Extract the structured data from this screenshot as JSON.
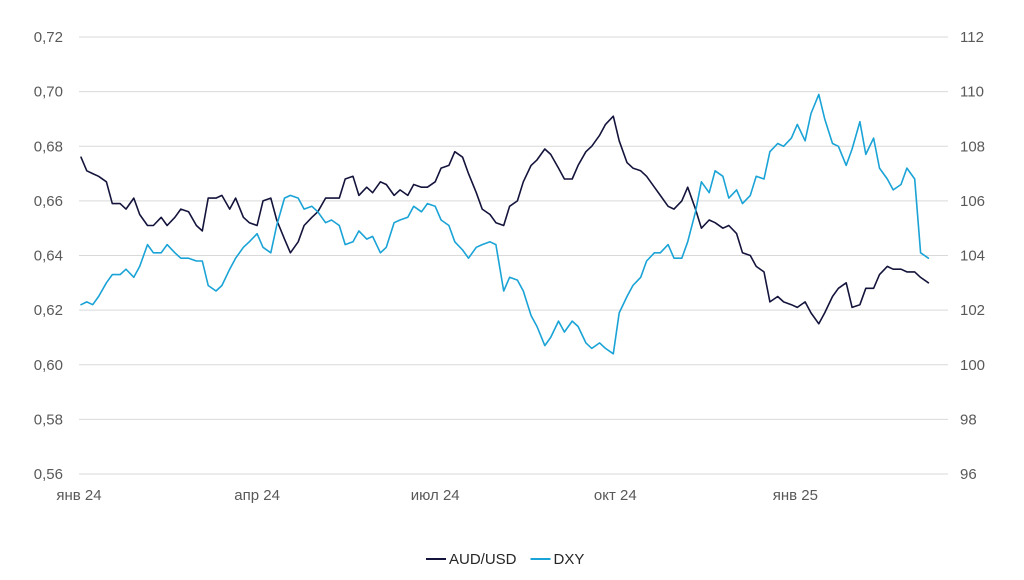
{
  "chart_data": {
    "type": "line",
    "title": "",
    "xlabel": "",
    "ylabel_left": "",
    "ylabel_right": "",
    "x_tick_labels": [
      {
        "label": "янв 24",
        "date": "2024-01-01"
      },
      {
        "label": "апр 24",
        "date": "2024-04-01"
      },
      {
        "label": "июл 24",
        "date": "2024-07-01"
      },
      {
        "label": "окт 24",
        "date": "2024-10-01"
      },
      {
        "label": "янв 25",
        "date": "2025-01-01"
      }
    ],
    "xlim": [
      "2024-01-01",
      "2025-03-20"
    ],
    "left_axis": {
      "ylim": [
        0.56,
        0.72
      ],
      "ticks": [
        {
          "value": 0.56,
          "label": "0,56"
        },
        {
          "value": 0.58,
          "label": "0,58"
        },
        {
          "value": 0.6,
          "label": "0,60"
        },
        {
          "value": 0.62,
          "label": "0,62"
        },
        {
          "value": 0.64,
          "label": "0,64"
        },
        {
          "value": 0.66,
          "label": "0,66"
        },
        {
          "value": 0.68,
          "label": "0,68"
        },
        {
          "value": 0.7,
          "label": "0,70"
        },
        {
          "value": 0.72,
          "label": "0,72"
        }
      ]
    },
    "right_axis": {
      "ylim": [
        96,
        112
      ],
      "ticks": [
        {
          "value": 96,
          "label": "96"
        },
        {
          "value": 98,
          "label": "98"
        },
        {
          "value": 100,
          "label": "100"
        },
        {
          "value": 102,
          "label": "102"
        },
        {
          "value": 104,
          "label": "104"
        },
        {
          "value": 106,
          "label": "106"
        },
        {
          "value": 108,
          "label": "108"
        },
        {
          "value": 110,
          "label": "110"
        },
        {
          "value": 112,
          "label": "112"
        }
      ]
    },
    "grid": true,
    "legend_position": "bottom",
    "series": [
      {
        "name": "AUD/USD",
        "axis": "left",
        "color": "#14143c",
        "points": [
          [
            "2024-01-02",
            0.676
          ],
          [
            "2024-01-05",
            0.671
          ],
          [
            "2024-01-08",
            0.67
          ],
          [
            "2024-01-11",
            0.669
          ],
          [
            "2024-01-15",
            0.667
          ],
          [
            "2024-01-18",
            0.659
          ],
          [
            "2024-01-22",
            0.659
          ],
          [
            "2024-01-25",
            0.657
          ],
          [
            "2024-01-29",
            0.661
          ],
          [
            "2024-02-01",
            0.655
          ],
          [
            "2024-02-05",
            0.651
          ],
          [
            "2024-02-08",
            0.651
          ],
          [
            "2024-02-12",
            0.654
          ],
          [
            "2024-02-15",
            0.651
          ],
          [
            "2024-02-19",
            0.654
          ],
          [
            "2024-02-22",
            0.657
          ],
          [
            "2024-02-26",
            0.656
          ],
          [
            "2024-03-01",
            0.651
          ],
          [
            "2024-03-04",
            0.649
          ],
          [
            "2024-03-07",
            0.661
          ],
          [
            "2024-03-11",
            0.661
          ],
          [
            "2024-03-14",
            0.662
          ],
          [
            "2024-03-18",
            0.657
          ],
          [
            "2024-03-21",
            0.661
          ],
          [
            "2024-03-25",
            0.654
          ],
          [
            "2024-03-28",
            0.652
          ],
          [
            "2024-04-01",
            0.651
          ],
          [
            "2024-04-04",
            0.66
          ],
          [
            "2024-04-08",
            0.661
          ],
          [
            "2024-04-11",
            0.653
          ],
          [
            "2024-04-15",
            0.646
          ],
          [
            "2024-04-18",
            0.641
          ],
          [
            "2024-04-22",
            0.645
          ],
          [
            "2024-04-25",
            0.651
          ],
          [
            "2024-04-29",
            0.654
          ],
          [
            "2024-05-02",
            0.656
          ],
          [
            "2024-05-06",
            0.661
          ],
          [
            "2024-05-09",
            0.661
          ],
          [
            "2024-05-13",
            0.661
          ],
          [
            "2024-05-16",
            0.668
          ],
          [
            "2024-05-20",
            0.669
          ],
          [
            "2024-05-23",
            0.662
          ],
          [
            "2024-05-27",
            0.665
          ],
          [
            "2024-05-30",
            0.663
          ],
          [
            "2024-06-03",
            0.667
          ],
          [
            "2024-06-06",
            0.666
          ],
          [
            "2024-06-10",
            0.662
          ],
          [
            "2024-06-13",
            0.664
          ],
          [
            "2024-06-17",
            0.662
          ],
          [
            "2024-06-20",
            0.666
          ],
          [
            "2024-06-24",
            0.665
          ],
          [
            "2024-06-27",
            0.665
          ],
          [
            "2024-07-01",
            0.667
          ],
          [
            "2024-07-04",
            0.672
          ],
          [
            "2024-07-08",
            0.673
          ],
          [
            "2024-07-11",
            0.678
          ],
          [
            "2024-07-15",
            0.676
          ],
          [
            "2024-07-18",
            0.67
          ],
          [
            "2024-07-22",
            0.663
          ],
          [
            "2024-07-25",
            0.657
          ],
          [
            "2024-07-29",
            0.655
          ],
          [
            "2024-08-01",
            0.652
          ],
          [
            "2024-08-05",
            0.651
          ],
          [
            "2024-08-08",
            0.658
          ],
          [
            "2024-08-12",
            0.66
          ],
          [
            "2024-08-15",
            0.667
          ],
          [
            "2024-08-19",
            0.673
          ],
          [
            "2024-08-22",
            0.675
          ],
          [
            "2024-08-26",
            0.679
          ],
          [
            "2024-08-29",
            0.677
          ],
          [
            "2024-09-02",
            0.672
          ],
          [
            "2024-09-05",
            0.668
          ],
          [
            "2024-09-09",
            0.668
          ],
          [
            "2024-09-12",
            0.673
          ],
          [
            "2024-09-16",
            0.678
          ],
          [
            "2024-09-19",
            0.68
          ],
          [
            "2024-09-23",
            0.684
          ],
          [
            "2024-09-26",
            0.688
          ],
          [
            "2024-09-30",
            0.691
          ],
          [
            "2024-10-03",
            0.682
          ],
          [
            "2024-10-07",
            0.674
          ],
          [
            "2024-10-10",
            0.672
          ],
          [
            "2024-10-14",
            0.671
          ],
          [
            "2024-10-17",
            0.669
          ],
          [
            "2024-10-21",
            0.665
          ],
          [
            "2024-10-24",
            0.662
          ],
          [
            "2024-10-28",
            0.658
          ],
          [
            "2024-10-31",
            0.657
          ],
          [
            "2024-11-04",
            0.66
          ],
          [
            "2024-11-07",
            0.665
          ],
          [
            "2024-11-11",
            0.657
          ],
          [
            "2024-11-14",
            0.65
          ],
          [
            "2024-11-18",
            0.653
          ],
          [
            "2024-11-21",
            0.652
          ],
          [
            "2024-11-25",
            0.65
          ],
          [
            "2024-11-28",
            0.651
          ],
          [
            "2024-12-02",
            0.648
          ],
          [
            "2024-12-05",
            0.641
          ],
          [
            "2024-12-09",
            0.64
          ],
          [
            "2024-12-12",
            0.636
          ],
          [
            "2024-12-16",
            0.634
          ],
          [
            "2024-12-19",
            0.623
          ],
          [
            "2024-12-23",
            0.625
          ],
          [
            "2024-12-26",
            0.623
          ],
          [
            "2024-12-30",
            0.622
          ],
          [
            "2025-01-02",
            0.621
          ],
          [
            "2025-01-06",
            0.623
          ],
          [
            "2025-01-09",
            0.619
          ],
          [
            "2025-01-13",
            0.615
          ],
          [
            "2025-01-16",
            0.619
          ],
          [
            "2025-01-20",
            0.625
          ],
          [
            "2025-01-23",
            0.628
          ],
          [
            "2025-01-27",
            0.63
          ],
          [
            "2025-01-30",
            0.621
          ],
          [
            "2025-02-03",
            0.622
          ],
          [
            "2025-02-06",
            0.628
          ],
          [
            "2025-02-10",
            0.628
          ],
          [
            "2025-02-13",
            0.633
          ],
          [
            "2025-02-17",
            0.636
          ],
          [
            "2025-02-20",
            0.635
          ],
          [
            "2025-02-24",
            0.635
          ],
          [
            "2025-02-27",
            0.634
          ],
          [
            "2025-03-03",
            0.634
          ],
          [
            "2025-03-06",
            0.632
          ],
          [
            "2025-03-10",
            0.63
          ]
        ]
      },
      {
        "name": "DXY",
        "axis": "right",
        "color": "#1aa3d6",
        "points": [
          [
            "2024-01-02",
            102.2
          ],
          [
            "2024-01-05",
            102.3
          ],
          [
            "2024-01-08",
            102.2
          ],
          [
            "2024-01-11",
            102.5
          ],
          [
            "2024-01-15",
            103.0
          ],
          [
            "2024-01-18",
            103.3
          ],
          [
            "2024-01-22",
            103.3
          ],
          [
            "2024-01-25",
            103.5
          ],
          [
            "2024-01-29",
            103.2
          ],
          [
            "2024-02-01",
            103.6
          ],
          [
            "2024-02-05",
            104.4
          ],
          [
            "2024-02-08",
            104.1
          ],
          [
            "2024-02-12",
            104.1
          ],
          [
            "2024-02-15",
            104.4
          ],
          [
            "2024-02-19",
            104.1
          ],
          [
            "2024-02-22",
            103.9
          ],
          [
            "2024-02-26",
            103.9
          ],
          [
            "2024-03-01",
            103.8
          ],
          [
            "2024-03-04",
            103.8
          ],
          [
            "2024-03-07",
            102.9
          ],
          [
            "2024-03-11",
            102.7
          ],
          [
            "2024-03-14",
            102.9
          ],
          [
            "2024-03-18",
            103.5
          ],
          [
            "2024-03-21",
            103.9
          ],
          [
            "2024-03-25",
            104.3
          ],
          [
            "2024-03-28",
            104.5
          ],
          [
            "2024-04-01",
            104.8
          ],
          [
            "2024-04-04",
            104.3
          ],
          [
            "2024-04-08",
            104.1
          ],
          [
            "2024-04-11",
            105.1
          ],
          [
            "2024-04-15",
            106.1
          ],
          [
            "2024-04-18",
            106.2
          ],
          [
            "2024-04-22",
            106.1
          ],
          [
            "2024-04-25",
            105.7
          ],
          [
            "2024-04-29",
            105.8
          ],
          [
            "2024-05-02",
            105.6
          ],
          [
            "2024-05-06",
            105.2
          ],
          [
            "2024-05-09",
            105.3
          ],
          [
            "2024-05-13",
            105.1
          ],
          [
            "2024-05-16",
            104.4
          ],
          [
            "2024-05-20",
            104.5
          ],
          [
            "2024-05-23",
            104.9
          ],
          [
            "2024-05-27",
            104.6
          ],
          [
            "2024-05-30",
            104.7
          ],
          [
            "2024-06-03",
            104.1
          ],
          [
            "2024-06-06",
            104.3
          ],
          [
            "2024-06-10",
            105.2
          ],
          [
            "2024-06-13",
            105.3
          ],
          [
            "2024-06-17",
            105.4
          ],
          [
            "2024-06-20",
            105.8
          ],
          [
            "2024-06-24",
            105.6
          ],
          [
            "2024-06-27",
            105.9
          ],
          [
            "2024-07-01",
            105.8
          ],
          [
            "2024-07-04",
            105.3
          ],
          [
            "2024-07-08",
            105.1
          ],
          [
            "2024-07-11",
            104.5
          ],
          [
            "2024-07-15",
            104.2
          ],
          [
            "2024-07-18",
            103.9
          ],
          [
            "2024-07-22",
            104.3
          ],
          [
            "2024-07-25",
            104.4
          ],
          [
            "2024-07-29",
            104.5
          ],
          [
            "2024-08-01",
            104.4
          ],
          [
            "2024-08-05",
            102.7
          ],
          [
            "2024-08-08",
            103.2
          ],
          [
            "2024-08-12",
            103.1
          ],
          [
            "2024-08-15",
            102.7
          ],
          [
            "2024-08-19",
            101.8
          ],
          [
            "2024-08-22",
            101.4
          ],
          [
            "2024-08-26",
            100.7
          ],
          [
            "2024-08-29",
            101.0
          ],
          [
            "2024-09-02",
            101.6
          ],
          [
            "2024-09-05",
            101.2
          ],
          [
            "2024-09-09",
            101.6
          ],
          [
            "2024-09-12",
            101.4
          ],
          [
            "2024-09-16",
            100.8
          ],
          [
            "2024-09-19",
            100.6
          ],
          [
            "2024-09-23",
            100.8
          ],
          [
            "2024-09-26",
            100.6
          ],
          [
            "2024-09-30",
            100.4
          ],
          [
            "2024-10-03",
            101.9
          ],
          [
            "2024-10-07",
            102.5
          ],
          [
            "2024-10-10",
            102.9
          ],
          [
            "2024-10-14",
            103.2
          ],
          [
            "2024-10-17",
            103.8
          ],
          [
            "2024-10-21",
            104.1
          ],
          [
            "2024-10-24",
            104.1
          ],
          [
            "2024-10-28",
            104.4
          ],
          [
            "2024-10-31",
            103.9
          ],
          [
            "2024-11-04",
            103.9
          ],
          [
            "2024-11-07",
            104.5
          ],
          [
            "2024-11-11",
            105.6
          ],
          [
            "2024-11-14",
            106.7
          ],
          [
            "2024-11-18",
            106.3
          ],
          [
            "2024-11-21",
            107.1
          ],
          [
            "2024-11-25",
            106.9
          ],
          [
            "2024-11-28",
            106.1
          ],
          [
            "2024-12-02",
            106.4
          ],
          [
            "2024-12-05",
            105.9
          ],
          [
            "2024-12-09",
            106.2
          ],
          [
            "2024-12-12",
            106.9
          ],
          [
            "2024-12-16",
            106.8
          ],
          [
            "2024-12-19",
            107.8
          ],
          [
            "2024-12-23",
            108.1
          ],
          [
            "2024-12-26",
            108.0
          ],
          [
            "2024-12-30",
            108.3
          ],
          [
            "2025-01-02",
            108.8
          ],
          [
            "2025-01-06",
            108.2
          ],
          [
            "2025-01-09",
            109.2
          ],
          [
            "2025-01-13",
            109.9
          ],
          [
            "2025-01-16",
            109.0
          ],
          [
            "2025-01-20",
            108.1
          ],
          [
            "2025-01-23",
            108.0
          ],
          [
            "2025-01-27",
            107.3
          ],
          [
            "2025-01-30",
            107.9
          ],
          [
            "2025-02-03",
            108.9
          ],
          [
            "2025-02-06",
            107.7
          ],
          [
            "2025-02-10",
            108.3
          ],
          [
            "2025-02-13",
            107.2
          ],
          [
            "2025-02-17",
            106.8
          ],
          [
            "2025-02-20",
            106.4
          ],
          [
            "2025-02-24",
            106.6
          ],
          [
            "2025-02-27",
            107.2
          ],
          [
            "2025-03-03",
            106.8
          ],
          [
            "2025-03-06",
            104.1
          ],
          [
            "2025-03-10",
            103.9
          ]
        ]
      }
    ]
  }
}
